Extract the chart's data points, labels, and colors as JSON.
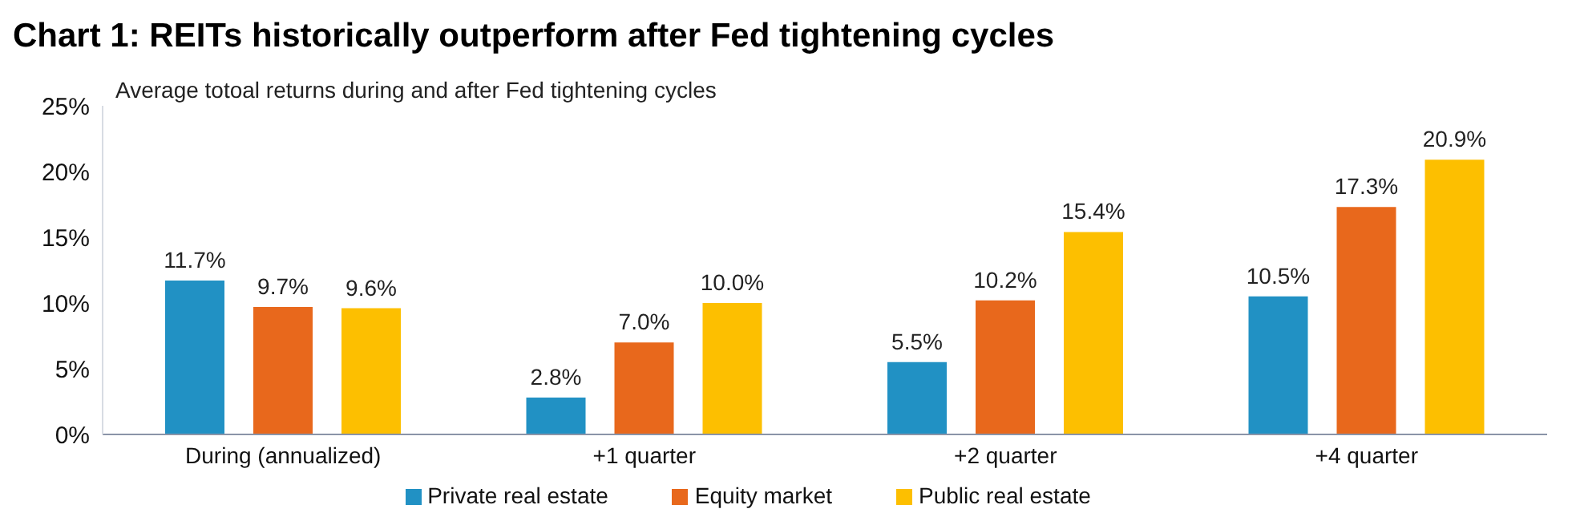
{
  "chart_data": {
    "type": "bar",
    "title": "Chart 1: REITs historically outperform after Fed tightening cycles",
    "subtitle": "Average totoal returns during and after Fed tightening cycles",
    "categories": [
      "During (annualized)",
      "+1 quarter",
      "+2 quarter",
      "+4 quarter"
    ],
    "series": [
      {
        "name": "Private real estate",
        "color": "#2191c4",
        "values": [
          11.7,
          2.8,
          5.5,
          10.5
        ],
        "value_labels": [
          "11.7%",
          "2.8%",
          "5.5%",
          "10.5%"
        ]
      },
      {
        "name": "Equity market",
        "color": "#e8681c",
        "values": [
          9.7,
          7.0,
          10.2,
          17.3
        ],
        "value_labels": [
          "9.7%",
          "7.0%",
          "10.2%",
          "17.3%"
        ]
      },
      {
        "name": "Public real estate",
        "color": "#fdbf00",
        "values": [
          9.6,
          10.0,
          15.4,
          20.9
        ],
        "value_labels": [
          "9.6%",
          "10.0%",
          "15.4%",
          "20.9%"
        ]
      }
    ],
    "ylim": [
      0,
      25
    ],
    "yticks": [
      {
        "value": 0,
        "label": "0%"
      },
      {
        "value": 5,
        "label": "5%"
      },
      {
        "value": 10,
        "label": "10%"
      },
      {
        "value": 15,
        "label": "15%"
      },
      {
        "value": 20,
        "label": "20%"
      },
      {
        "value": 25,
        "label": "25%"
      }
    ],
    "grid": false,
    "legend": "bottom"
  }
}
